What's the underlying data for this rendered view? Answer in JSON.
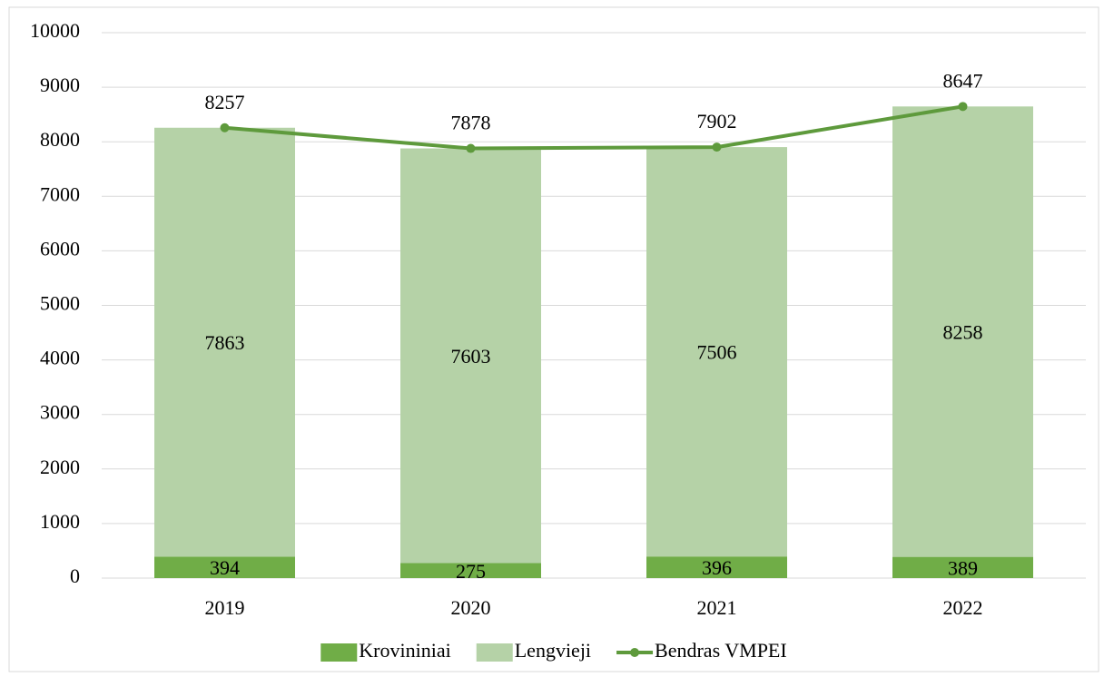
{
  "chart_data": {
    "type": "bar",
    "stacked": true,
    "categories": [
      "2019",
      "2020",
      "2021",
      "2022"
    ],
    "series": [
      {
        "name": "Krovininiai",
        "type": "bar",
        "color": "#70ad47",
        "values": [
          394,
          275,
          396,
          389
        ]
      },
      {
        "name": "Lengvieji",
        "type": "bar",
        "color": "#b5d2a7",
        "values": [
          7863,
          7603,
          7506,
          8258
        ]
      },
      {
        "name": "Bendras VMPEI",
        "type": "line",
        "color": "#5e9a3c",
        "values": [
          8257,
          7878,
          7902,
          8647
        ]
      }
    ],
    "ylim": [
      0,
      10000
    ],
    "yticks": [
      0,
      1000,
      2000,
      3000,
      4000,
      5000,
      6000,
      7000,
      8000,
      9000,
      10000
    ],
    "grid": true,
    "legend": "bottom"
  }
}
